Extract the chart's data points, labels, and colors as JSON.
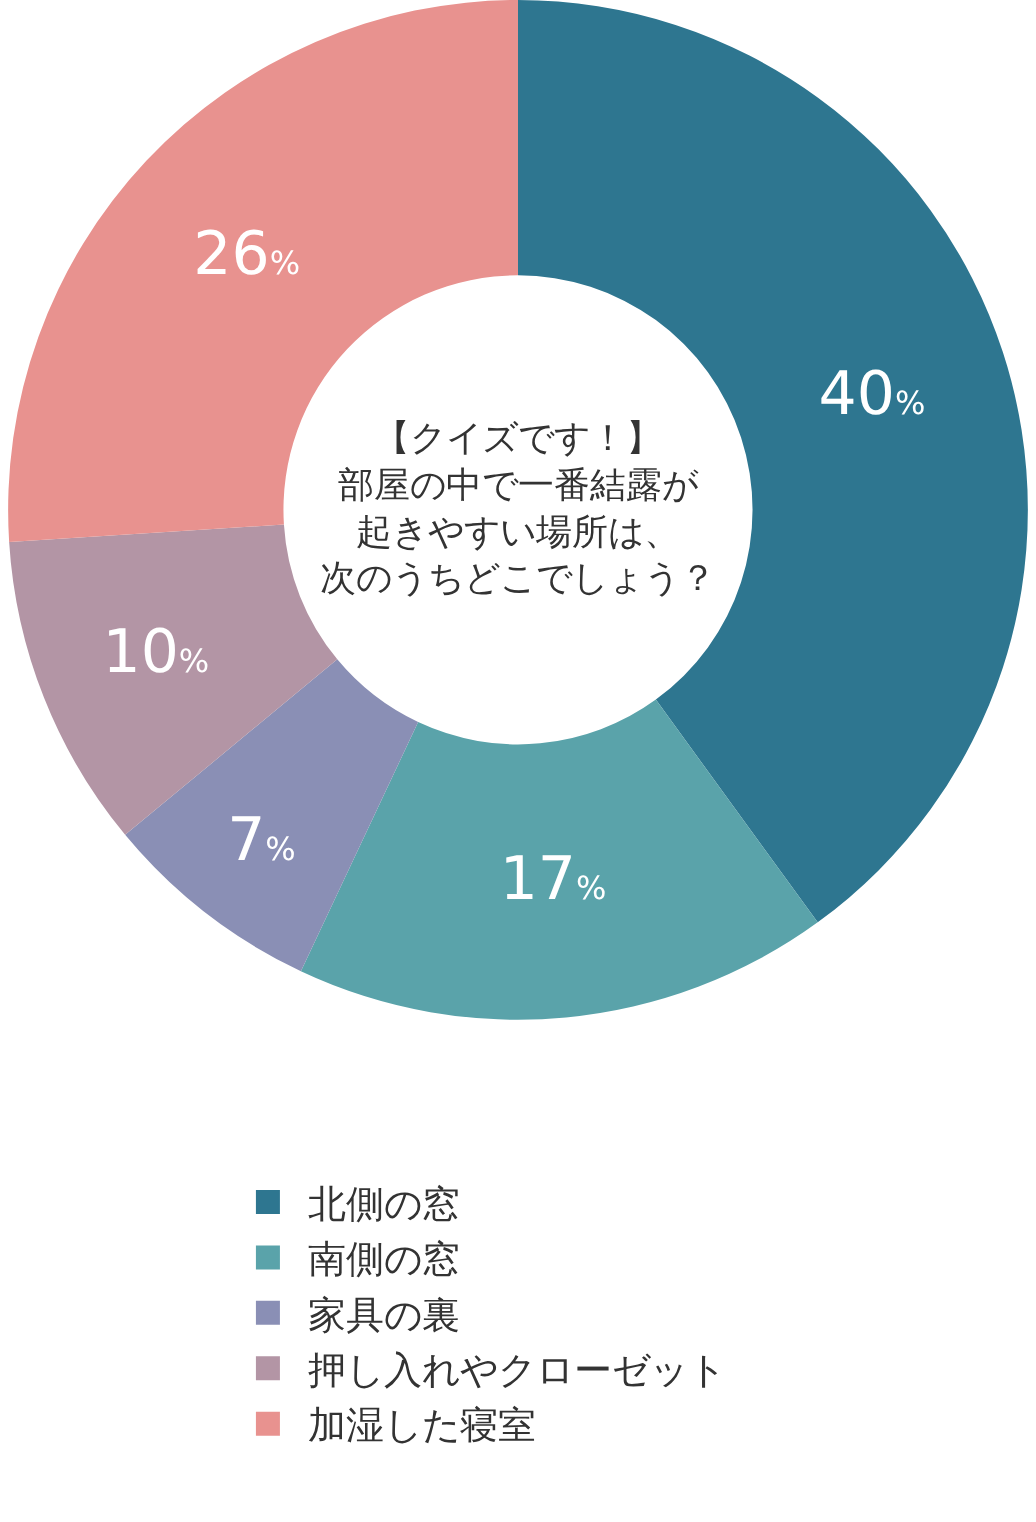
{
  "chart_data": {
    "type": "donut",
    "title": "【クイズです！】部屋の中で一番結露が起きやすい場所は、次のうちどこでしょう？",
    "categories": [
      "北側の窓",
      "南側の窓",
      "家具の裏",
      "押し入れやクローゼット",
      "加湿した寝室"
    ],
    "values": [
      40,
      17,
      7,
      10,
      26
    ],
    "colors": [
      "#2e7690",
      "#5aa3aa",
      "#8a8fb5",
      "#b395a5",
      "#e8928f"
    ],
    "value_labels": [
      "40%",
      "17%",
      "7%",
      "10%",
      "26%"
    ],
    "legend": "bottom"
  }
}
